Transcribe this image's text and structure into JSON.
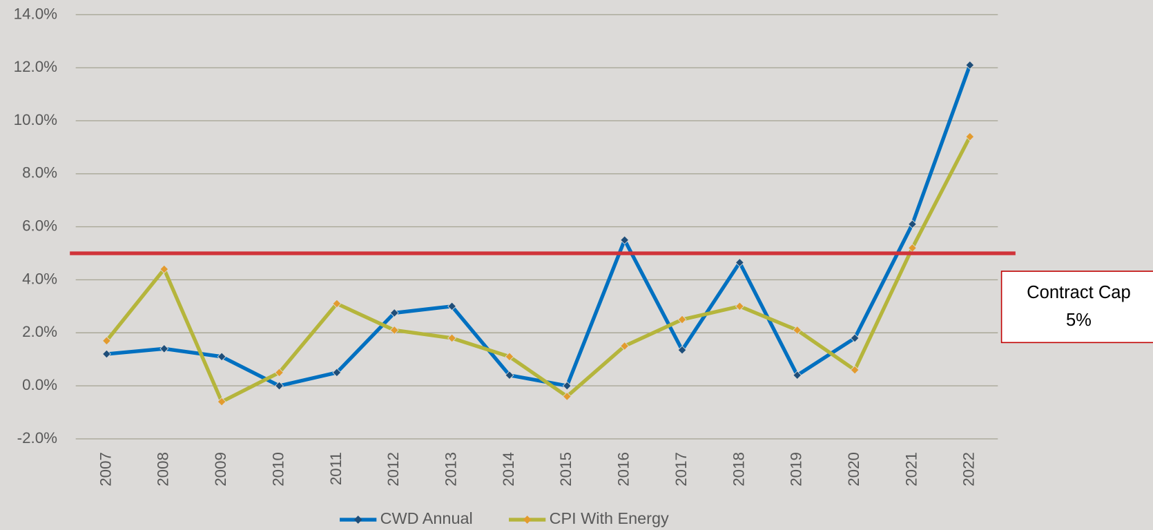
{
  "chart_data": {
    "type": "line",
    "categories": [
      "2007",
      "2008",
      "2009",
      "2010",
      "2011",
      "2012",
      "2013",
      "2014",
      "2015",
      "2016",
      "2017",
      "2018",
      "2019",
      "2020",
      "2021",
      "2022"
    ],
    "series": [
      {
        "name": "CWD Annual",
        "color": "#0070c0",
        "marker_color": "#1f4e79",
        "values": [
          1.2,
          1.4,
          1.1,
          0.0,
          0.5,
          2.75,
          3.0,
          0.4,
          0.0,
          5.5,
          1.35,
          4.65,
          0.4,
          1.8,
          6.1,
          12.1
        ]
      },
      {
        "name": "CPI With Energy",
        "color": "#b5b53c",
        "marker_color": "#e39b2e",
        "values": [
          1.7,
          4.4,
          -0.6,
          0.5,
          3.1,
          2.1,
          1.8,
          1.1,
          -0.4,
          1.5,
          2.5,
          3.0,
          2.1,
          0.6,
          5.2,
          9.4
        ]
      }
    ],
    "ylim": [
      -2,
      14
    ],
    "yticks": [
      {
        "value": -2,
        "label": "-2.0%"
      },
      {
        "value": 0,
        "label": "0.0%"
      },
      {
        "value": 2,
        "label": "2.0%"
      },
      {
        "value": 4,
        "label": "4.0%"
      },
      {
        "value": 6,
        "label": "6.0%"
      },
      {
        "value": 8,
        "label": "8.0%"
      },
      {
        "value": 10,
        "label": "10.0%"
      },
      {
        "value": 12,
        "label": "12.0%"
      },
      {
        "value": 14,
        "label": "14.0%"
      }
    ],
    "grid": true,
    "legend": "bottom",
    "reference_line": {
      "value": 5,
      "color": "#d0343a"
    },
    "annotation": {
      "lines": [
        "Contract Cap",
        "5%"
      ]
    }
  }
}
